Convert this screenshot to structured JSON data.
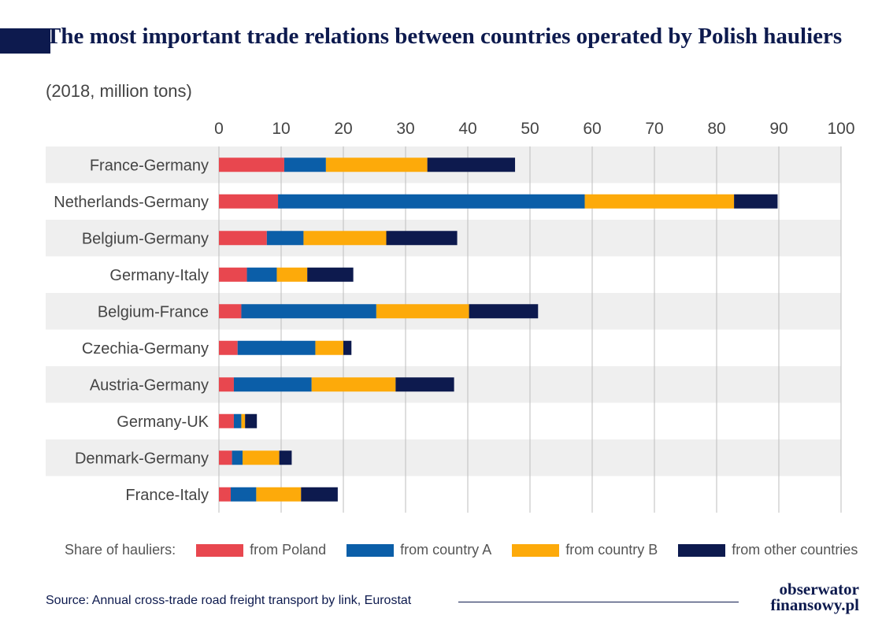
{
  "title": "The most important trade relations between countries operated by Polish hauliers",
  "subtitle": "(2018, million tons)",
  "legend_title": "Share of hauliers:",
  "source": "Source: Annual cross-trade road freight transport by link, Eurostat",
  "logo": {
    "line1": "obserwator",
    "line2": "finansowy.pl"
  },
  "chart_data": {
    "type": "bar",
    "orientation": "horizontal",
    "stacked": true,
    "categories": [
      "France-Germany",
      "Netherlands-Germany",
      "Belgium-Germany",
      "Germany-Italy",
      "Belgium-France",
      "Czechia-Germany",
      "Austria-Germany",
      "Germany-UK",
      "Denmark-Germany",
      "France-Italy"
    ],
    "series": [
      {
        "name": "from Poland",
        "color": "#e8474f",
        "values": [
          10.5,
          9.5,
          7.7,
          4.5,
          3.6,
          3.0,
          2.4,
          2.4,
          2.1,
          1.9
        ]
      },
      {
        "name": "from country A",
        "color": "#0b5ea8",
        "values": [
          6.7,
          49.3,
          5.9,
          4.8,
          21.7,
          12.5,
          12.5,
          1.2,
          1.7,
          4.1
        ]
      },
      {
        "name": "from country B",
        "color": "#fdaa0a",
        "values": [
          16.3,
          24.0,
          13.3,
          4.9,
          14.9,
          4.5,
          13.5,
          0.6,
          5.9,
          7.2
        ]
      },
      {
        "name": "from other countries",
        "color": "#0d1a4e",
        "values": [
          14.1,
          7.0,
          11.4,
          7.4,
          11.1,
          1.3,
          9.4,
          1.9,
          2.0,
          5.9
        ]
      }
    ],
    "xlim": [
      0,
      100
    ],
    "xticks": [
      0,
      10,
      20,
      30,
      40,
      50,
      60,
      70,
      80,
      90,
      100
    ],
    "grid": true,
    "legend_position": "bottom"
  }
}
